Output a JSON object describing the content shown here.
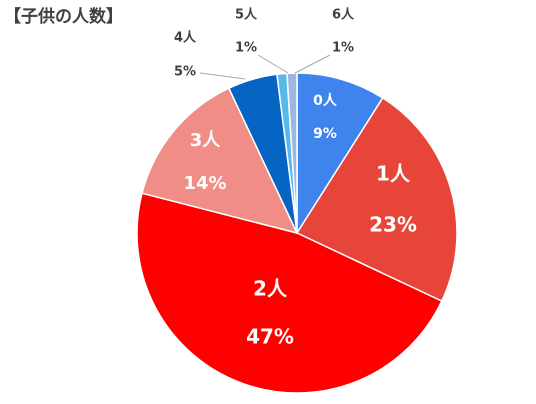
{
  "chart_data": {
    "type": "pie",
    "title": "【子供の人数】",
    "categories": [
      "0人",
      "1人",
      "2人",
      "3人",
      "4人",
      "5人",
      "6人"
    ],
    "values": [
      9,
      23,
      47,
      14,
      5,
      1,
      1
    ],
    "value_labels": [
      "9%",
      "23%",
      "47%",
      "14%",
      "5%",
      "1%",
      "1%"
    ],
    "colors": [
      "#3f83ec",
      "#e8453a",
      "#fe0000",
      "#ef8d86",
      "#0563c1",
      "#57b9ea",
      "#9db8de"
    ]
  }
}
